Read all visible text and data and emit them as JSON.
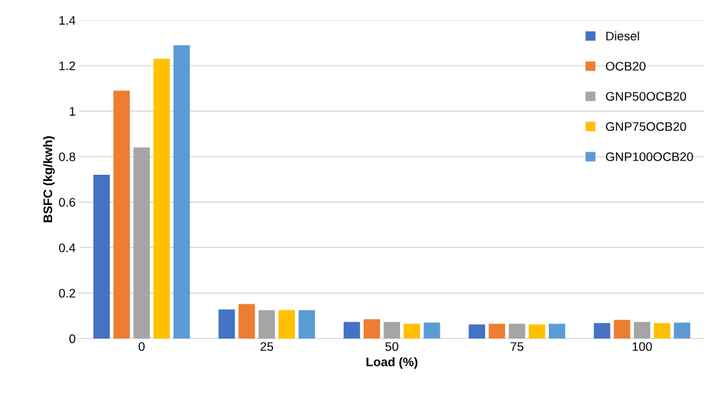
{
  "chart_data": {
    "type": "bar",
    "xlabel": "Load (%)",
    "ylabel": "BSFC (kg/kwh)",
    "categories": [
      "0",
      "25",
      "50",
      "75",
      "100"
    ],
    "series": [
      {
        "name": "Diesel",
        "color": "#4472c4",
        "values": [
          0.72,
          0.128,
          0.073,
          0.062,
          0.068
        ]
      },
      {
        "name": "OCB20",
        "color": "#ed7d31",
        "values": [
          1.09,
          0.152,
          0.085,
          0.065,
          0.082
        ]
      },
      {
        "name": "GNP50OCB20",
        "color": "#a5a5a5",
        "values": [
          0.84,
          0.125,
          0.073,
          0.065,
          0.073
        ]
      },
      {
        "name": "GNP75OCB20",
        "color": "#ffc000",
        "values": [
          1.23,
          0.125,
          0.065,
          0.062,
          0.068
        ]
      },
      {
        "name": "GNP100OCB20",
        "color": "#5b9bd5",
        "values": [
          1.29,
          0.125,
          0.07,
          0.065,
          0.07
        ]
      }
    ],
    "ylim": [
      0,
      1.4
    ],
    "yticks": [
      0,
      0.2,
      0.4,
      0.6,
      0.8,
      1,
      1.2,
      1.4
    ],
    "grid": "y",
    "legend": "top right"
  }
}
